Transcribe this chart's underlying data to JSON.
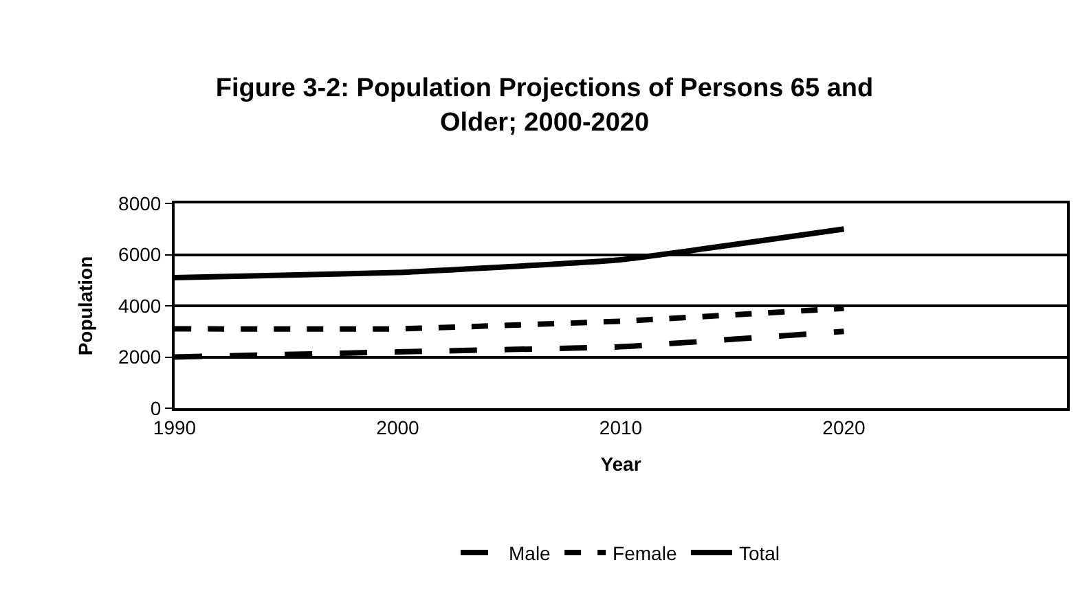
{
  "chart_data": {
    "type": "line",
    "title": "Figure 3-2: Population Projections of Persons 65 and Older; 2000-2020",
    "categories": [
      "1990",
      "2000",
      "2010",
      "2020",
      null
    ],
    "xlabel": "Year",
    "ylabel": "Population",
    "ylim": [
      0,
      8000
    ],
    "yticks": [
      0,
      2000,
      4000,
      6000,
      8000
    ],
    "grid": "y",
    "legend": "bottom",
    "marker": "none",
    "series": [
      {
        "name": "Male",
        "color": "#000000",
        "line_style": "longdash",
        "values": [
          2000,
          2200,
          2400,
          3000,
          null
        ]
      },
      {
        "name": "Female",
        "color": "#000000",
        "line_style": "dashed",
        "values": [
          3100,
          3100,
          3400,
          3900,
          null
        ]
      },
      {
        "name": "Total",
        "color": "#000000",
        "line_style": "solid",
        "values": [
          5100,
          5300,
          5800,
          7000,
          null
        ]
      }
    ]
  }
}
